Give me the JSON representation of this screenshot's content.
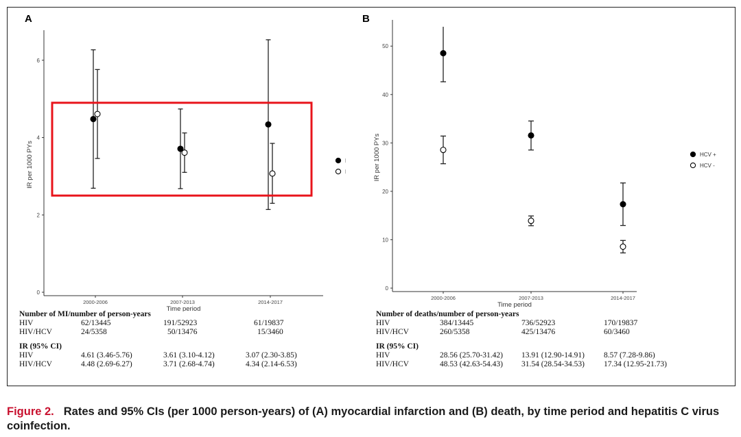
{
  "caption": {
    "label": "Figure 2.",
    "text": "Rates and 95% CIs (per 1000 person-years) of (A) myocardial infarction and (B) death, by time period and hepatitis C virus coinfection."
  },
  "colors": {
    "highlight": "#e8141b",
    "caption_label": "#c8102e",
    "filled": "#000000",
    "open": "#ffffff"
  },
  "chart_data": [
    {
      "panel": "A",
      "type": "scatter",
      "title": "",
      "xlabel": "Time period",
      "ylabel": "IR per 1000 PYs",
      "categories": [
        "2000-2006",
        "2007-2013",
        "2014-2017"
      ],
      "ylim": [
        0,
        6.6
      ],
      "yticks": [
        0,
        2,
        4,
        6
      ],
      "legend_position": "right",
      "series": [
        {
          "name": "HCV +",
          "marker": "filled",
          "values": [
            4.48,
            3.71,
            4.34
          ],
          "lower": [
            2.69,
            2.68,
            2.14
          ],
          "upper": [
            6.27,
            4.74,
            6.53
          ]
        },
        {
          "name": "HCV -",
          "marker": "open",
          "values": [
            4.61,
            3.61,
            3.07
          ],
          "lower": [
            3.46,
            3.1,
            2.3
          ],
          "upper": [
            5.76,
            4.12,
            3.85
          ]
        }
      ],
      "highlight_box": {
        "y_range": [
          2.5,
          4.9
        ],
        "color": "red"
      },
      "table": {
        "count_title": "Number of MI/number of person-years",
        "count_rows": [
          {
            "label": "HIV",
            "values": [
              "62/13445",
              "191/52923",
              "61/19837"
            ]
          },
          {
            "label": "HIV/HCV",
            "values": [
              "24/5358",
              "50/13476",
              "15/3460"
            ]
          }
        ],
        "ir_title": "IR (95% CI)",
        "ir_rows": [
          {
            "label": "HIV",
            "values": [
              "4.61 (3.46-5.76)",
              "3.61 (3.10-4.12)",
              "3.07 (2.30-3.85)"
            ]
          },
          {
            "label": "HIV/HCV",
            "values": [
              "4.48 (2.69-6.27)",
              "3.71 (2.68-4.74)",
              "4.34 (2.14-6.53)"
            ]
          }
        ]
      }
    },
    {
      "panel": "B",
      "type": "scatter",
      "title": "",
      "xlabel": "Time period",
      "ylabel": "IR per 1000 PYs",
      "categories": [
        "2000-2006",
        "2007-2013",
        "2014-2017"
      ],
      "ylim": [
        0,
        54
      ],
      "yticks": [
        0,
        10,
        20,
        30,
        40,
        50
      ],
      "legend_position": "right",
      "series": [
        {
          "name": "HCV +",
          "marker": "filled",
          "values": [
            48.53,
            31.54,
            17.34
          ],
          "lower": [
            42.63,
            28.54,
            12.95
          ],
          "upper": [
            54.43,
            34.53,
            21.73
          ]
        },
        {
          "name": "HCV -",
          "marker": "open",
          "values": [
            28.56,
            13.91,
            8.57
          ],
          "lower": [
            25.7,
            12.9,
            7.28
          ],
          "upper": [
            31.42,
            14.91,
            9.86
          ]
        }
      ],
      "table": {
        "count_title": "Number of deaths/number of person-years",
        "count_rows": [
          {
            "label": "HIV",
            "values": [
              "384/13445",
              "736/52923",
              "170/19837"
            ]
          },
          {
            "label": "HIV/HCV",
            "values": [
              "260/5358",
              "425/13476",
              "60/3460"
            ]
          }
        ],
        "ir_title": "IR (95% CI)",
        "ir_rows": [
          {
            "label": "HIV",
            "values": [
              "28.56 (25.70-31.42)",
              "13.91 (12.90-14.91)",
              "8.57 (7.28-9.86)"
            ]
          },
          {
            "label": "HIV/HCV",
            "values": [
              "48.53 (42.63-54.43)",
              "31.54 (28.54-34.53)",
              "17.34 (12.95-21.73)"
            ]
          }
        ]
      }
    }
  ]
}
